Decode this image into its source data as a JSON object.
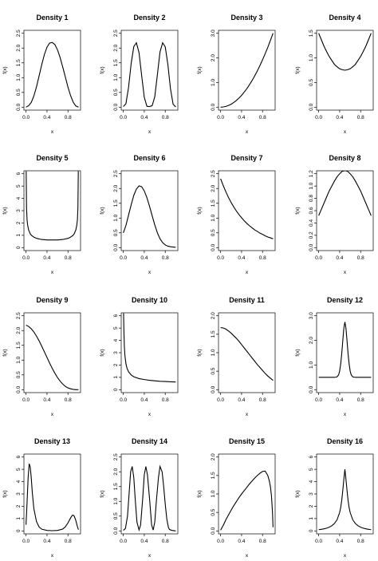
{
  "chart_data": [
    {
      "type": "line",
      "title": "Density 1",
      "xlabel": "x",
      "ylabel": "f(x)",
      "xlim": [
        0,
        1
      ],
      "ylim": [
        0,
        2.5
      ],
      "xticks": [
        "0.0",
        "0.4",
        "0.8"
      ],
      "yticks": [
        "0.0",
        "0.5",
        "1.0",
        "1.5",
        "2.0",
        "2.5"
      ],
      "x": [
        0,
        0.05,
        0.1,
        0.15,
        0.2,
        0.25,
        0.3,
        0.35,
        0.4,
        0.45,
        0.5,
        0.55,
        0.6,
        0.65,
        0.7,
        0.75,
        0.8,
        0.85,
        0.9,
        0.95,
        1
      ],
      "y": [
        0.0,
        0.05,
        0.16,
        0.38,
        0.69,
        1.06,
        1.44,
        1.78,
        2.03,
        2.17,
        2.19,
        2.12,
        1.94,
        1.68,
        1.36,
        1.02,
        0.68,
        0.39,
        0.17,
        0.04,
        0.0
      ]
    },
    {
      "type": "line",
      "title": "Density 2",
      "xlabel": "x",
      "ylabel": "f(x)",
      "xlim": [
        0,
        1
      ],
      "ylim": [
        0,
        2.5
      ],
      "xticks": [
        "0.0",
        "0.4",
        "0.8"
      ],
      "yticks": [
        "0.0",
        "0.5",
        "1.0",
        "1.5",
        "2.0",
        "2.5"
      ],
      "x": [
        0,
        0.05,
        0.1,
        0.15,
        0.2,
        0.25,
        0.3,
        0.35,
        0.4,
        0.45,
        0.5,
        0.55,
        0.6,
        0.65,
        0.7,
        0.75,
        0.8,
        0.85,
        0.9,
        0.95,
        1
      ],
      "y": [
        0.02,
        0.12,
        0.67,
        1.48,
        2.05,
        2.18,
        1.84,
        1.07,
        0.33,
        0.03,
        0.02,
        0.05,
        0.35,
        1.1,
        1.87,
        2.18,
        2.04,
        1.44,
        0.62,
        0.1,
        0.01
      ]
    },
    {
      "type": "line",
      "title": "Density 3",
      "xlabel": "x",
      "ylabel": "f(x)",
      "xlim": [
        0,
        1
      ],
      "ylim": [
        0,
        3
      ],
      "xticks": [
        "0.0",
        "0.4",
        "0.8"
      ],
      "yticks": [
        "0.0",
        "1.0",
        "2.0",
        "3.0"
      ],
      "x": [
        0,
        0.05,
        0.1,
        0.15,
        0.2,
        0.25,
        0.3,
        0.35,
        0.4,
        0.45,
        0.5,
        0.55,
        0.6,
        0.65,
        0.7,
        0.75,
        0.8,
        0.85,
        0.9,
        0.95,
        1
      ],
      "y": [
        0.0,
        0.01,
        0.03,
        0.07,
        0.12,
        0.19,
        0.27,
        0.37,
        0.48,
        0.61,
        0.75,
        0.91,
        1.08,
        1.27,
        1.47,
        1.69,
        1.92,
        2.17,
        2.43,
        2.71,
        3.0
      ]
    },
    {
      "type": "line",
      "title": "Density 4",
      "xlabel": "x",
      "ylabel": "f(x)",
      "xlim": [
        0,
        1
      ],
      "ylim": [
        0,
        1.5
      ],
      "xticks": [
        "0.0",
        "0.4",
        "0.8"
      ],
      "yticks": [
        "0.0",
        "0.5",
        "1.0",
        "1.5"
      ],
      "x": [
        0,
        0.05,
        0.1,
        0.15,
        0.2,
        0.25,
        0.3,
        0.35,
        0.4,
        0.45,
        0.5,
        0.55,
        0.6,
        0.65,
        0.7,
        0.75,
        0.8,
        0.85,
        0.9,
        0.95,
        1
      ],
      "y": [
        1.5,
        1.37,
        1.24,
        1.13,
        1.03,
        0.95,
        0.87,
        0.82,
        0.78,
        0.76,
        0.75,
        0.76,
        0.78,
        0.82,
        0.87,
        0.95,
        1.03,
        1.13,
        1.24,
        1.37,
        1.5
      ]
    },
    {
      "type": "line",
      "title": "Density 5",
      "xlabel": "x",
      "ylabel": "f(x)",
      "xlim": [
        0,
        1
      ],
      "ylim": [
        0,
        6
      ],
      "xticks": [
        "0.0",
        "0.4",
        "0.8"
      ],
      "yticks": [
        "0",
        "1",
        "2",
        "3",
        "4",
        "5",
        "6"
      ],
      "x": [
        0.003,
        0.01,
        0.02,
        0.03,
        0.05,
        0.08,
        0.1,
        0.15,
        0.2,
        0.3,
        0.4,
        0.5,
        0.6,
        0.7,
        0.8,
        0.85,
        0.9,
        0.92,
        0.95,
        0.97,
        0.98,
        0.99,
        0.997
      ],
      "y": [
        6.2,
        3.2,
        2.26,
        1.85,
        1.43,
        1.13,
        1.01,
        0.85,
        0.75,
        0.66,
        0.62,
        0.62,
        0.62,
        0.66,
        0.75,
        0.85,
        1.01,
        1.13,
        1.43,
        1.85,
        2.26,
        3.2,
        6.2
      ]
    },
    {
      "type": "line",
      "title": "Density 6",
      "xlabel": "x",
      "ylabel": "f(x)",
      "xlim": [
        0,
        1
      ],
      "ylim": [
        0,
        2.5
      ],
      "xticks": [
        "0.0",
        "0.4",
        "0.8"
      ],
      "yticks": [
        "0.0",
        "0.5",
        "1.0",
        "1.5",
        "2.0",
        "2.5"
      ],
      "x": [
        0,
        0.05,
        0.1,
        0.15,
        0.2,
        0.25,
        0.3,
        0.35,
        0.4,
        0.45,
        0.5,
        0.55,
        0.6,
        0.65,
        0.7,
        0.75,
        0.8,
        0.85,
        0.9,
        0.95,
        1
      ],
      "y": [
        0.5,
        0.75,
        1.1,
        1.45,
        1.77,
        1.98,
        2.09,
        2.06,
        1.92,
        1.69,
        1.4,
        1.08,
        0.77,
        0.5,
        0.3,
        0.17,
        0.09,
        0.05,
        0.03,
        0.02,
        0.01
      ]
    },
    {
      "type": "line",
      "title": "Density 7",
      "xlabel": "x",
      "ylabel": "f(x)",
      "xlim": [
        0,
        1
      ],
      "ylim": [
        0,
        2.5
      ],
      "xticks": [
        "0.0",
        "0.4",
        "0.8"
      ],
      "yticks": [
        "0.0",
        "0.5",
        "1.0",
        "1.5",
        "2.0",
        "2.5"
      ],
      "x": [
        0,
        0.05,
        0.1,
        0.15,
        0.2,
        0.25,
        0.3,
        0.35,
        0.4,
        0.45,
        0.5,
        0.55,
        0.6,
        0.65,
        0.7,
        0.75,
        0.8,
        0.85,
        0.9,
        0.95,
        1
      ],
      "y": [
        2.33,
        2.1,
        1.89,
        1.7,
        1.53,
        1.38,
        1.24,
        1.12,
        1.01,
        0.91,
        0.82,
        0.74,
        0.67,
        0.6,
        0.55,
        0.49,
        0.45,
        0.4,
        0.36,
        0.33,
        0.3
      ]
    },
    {
      "type": "line",
      "title": "Density 8",
      "xlabel": "x",
      "ylabel": "f(x)",
      "xlim": [
        0,
        1
      ],
      "ylim": [
        0,
        1.2
      ],
      "xticks": [
        "0.0",
        "0.4",
        "0.8"
      ],
      "yticks": [
        "0.0",
        "0.2",
        "0.4",
        "0.6",
        "0.8",
        "1.0",
        "1.2"
      ],
      "x": [
        0,
        0.05,
        0.1,
        0.15,
        0.2,
        0.25,
        0.3,
        0.35,
        0.4,
        0.45,
        0.5,
        0.55,
        0.6,
        0.65,
        0.7,
        0.75,
        0.8,
        0.85,
        0.9,
        0.95,
        1
      ],
      "y": [
        0.52,
        0.62,
        0.72,
        0.82,
        0.92,
        1.0,
        1.08,
        1.15,
        1.2,
        1.24,
        1.25,
        1.24,
        1.2,
        1.15,
        1.08,
        1.0,
        0.92,
        0.82,
        0.72,
        0.62,
        0.52
      ]
    },
    {
      "type": "line",
      "title": "Density 9",
      "xlabel": "x",
      "ylabel": "f(x)",
      "xlim": [
        0,
        1
      ],
      "ylim": [
        0,
        2.5
      ],
      "xticks": [
        "0.0",
        "0.4",
        "0.8"
      ],
      "yticks": [
        "0.0",
        "0.5",
        "1.0",
        "1.5",
        "2.0",
        "2.5"
      ],
      "x": [
        0,
        0.05,
        0.1,
        0.15,
        0.2,
        0.25,
        0.3,
        0.35,
        0.4,
        0.45,
        0.5,
        0.55,
        0.6,
        0.65,
        0.7,
        0.75,
        0.8,
        0.85,
        0.9,
        0.95,
        1
      ],
      "y": [
        2.18,
        2.14,
        2.06,
        1.95,
        1.81,
        1.65,
        1.47,
        1.28,
        1.09,
        0.9,
        0.72,
        0.56,
        0.41,
        0.29,
        0.19,
        0.11,
        0.06,
        0.03,
        0.01,
        0.0,
        0.0
      ]
    },
    {
      "type": "line",
      "title": "Density 10",
      "xlabel": "x",
      "ylabel": "f(x)",
      "xlim": [
        0,
        1
      ],
      "ylim": [
        0,
        6
      ],
      "xticks": [
        "0.0",
        "0.4",
        "0.8"
      ],
      "yticks": [
        "0",
        "1",
        "2",
        "3",
        "4",
        "5",
        "6"
      ],
      "x": [
        0.005,
        0.01,
        0.02,
        0.03,
        0.05,
        0.07,
        0.1,
        0.15,
        0.2,
        0.3,
        0.4,
        0.5,
        0.6,
        0.7,
        0.8,
        0.9,
        1
      ],
      "y": [
        6.2,
        5.0,
        3.5,
        2.8,
        2.1,
        1.75,
        1.45,
        1.2,
        1.05,
        0.9,
        0.82,
        0.76,
        0.72,
        0.68,
        0.66,
        0.64,
        0.62
      ]
    },
    {
      "type": "line",
      "title": "Density 11",
      "xlabel": "x",
      "ylabel": "f(x)",
      "xlim": [
        0,
        1
      ],
      "ylim": [
        0,
        2
      ],
      "xticks": [
        "0.0",
        "0.4",
        "0.8"
      ],
      "yticks": [
        "0.0",
        "0.5",
        "1.0",
        "1.5",
        "2.0"
      ],
      "x": [
        0,
        0.05,
        0.1,
        0.15,
        0.2,
        0.25,
        0.3,
        0.35,
        0.4,
        0.45,
        0.5,
        0.55,
        0.6,
        0.65,
        0.7,
        0.75,
        0.8,
        0.85,
        0.9,
        0.95,
        1
      ],
      "y": [
        1.68,
        1.67,
        1.64,
        1.59,
        1.53,
        1.46,
        1.39,
        1.31,
        1.22,
        1.13,
        1.04,
        0.95,
        0.86,
        0.77,
        0.68,
        0.6,
        0.52,
        0.44,
        0.37,
        0.31,
        0.25
      ]
    },
    {
      "type": "line",
      "title": "Density 12",
      "xlabel": "x",
      "ylabel": "f(x)",
      "xlim": [
        0,
        1
      ],
      "ylim": [
        0,
        3
      ],
      "xticks": [
        "0.0",
        "0.4",
        "0.8"
      ],
      "yticks": [
        "0.0",
        "1.0",
        "2.0",
        "3.0"
      ],
      "x": [
        0,
        0.1,
        0.2,
        0.3,
        0.35,
        0.38,
        0.4,
        0.42,
        0.44,
        0.46,
        0.48,
        0.5,
        0.52,
        0.54,
        0.56,
        0.58,
        0.6,
        0.62,
        0.65,
        0.7,
        0.8,
        0.9,
        1
      ],
      "y": [
        0.5,
        0.5,
        0.5,
        0.5,
        0.52,
        0.6,
        0.76,
        1.05,
        1.47,
        2.0,
        2.5,
        2.75,
        2.5,
        2.0,
        1.47,
        1.05,
        0.76,
        0.6,
        0.52,
        0.5,
        0.5,
        0.5,
        0.5
      ]
    },
    {
      "type": "line",
      "title": "Density 13",
      "xlabel": "x",
      "ylabel": "f(x)",
      "xlim": [
        0,
        1
      ],
      "ylim": [
        0,
        6
      ],
      "xticks": [
        "0.0",
        "0.4",
        "0.8"
      ],
      "yticks": [
        "0",
        "1",
        "2",
        "3",
        "4",
        "5",
        "6"
      ],
      "x": [
        0,
        0.02,
        0.04,
        0.06,
        0.08,
        0.1,
        0.12,
        0.15,
        0.2,
        0.25,
        0.3,
        0.4,
        0.5,
        0.6,
        0.7,
        0.75,
        0.8,
        0.85,
        0.88,
        0.9,
        0.92,
        0.95,
        0.98,
        1
      ],
      "y": [
        0.5,
        2.3,
        4.3,
        5.45,
        5.2,
        4.3,
        3.1,
        1.8,
        0.75,
        0.32,
        0.14,
        0.04,
        0.02,
        0.04,
        0.15,
        0.33,
        0.65,
        1.05,
        1.25,
        1.28,
        1.2,
        0.85,
        0.35,
        0.1
      ]
    },
    {
      "type": "line",
      "title": "Density 14",
      "xlabel": "x",
      "ylabel": "f(x)",
      "xlim": [
        0,
        1
      ],
      "ylim": [
        0,
        2.5
      ],
      "xticks": [
        "0.0",
        "0.4",
        "0.8"
      ],
      "yticks": [
        "0.0",
        "0.5",
        "1.0",
        "1.5",
        "2.0",
        "2.5"
      ],
      "x": [
        0,
        0.04,
        0.08,
        0.12,
        0.14,
        0.17,
        0.2,
        0.23,
        0.26,
        0.3,
        0.33,
        0.37,
        0.4,
        0.43,
        0.46,
        0.5,
        0.54,
        0.57,
        0.6,
        0.63,
        0.67,
        0.7,
        0.74,
        0.77,
        0.8,
        0.83,
        0.86,
        0.88,
        0.92,
        0.96,
        1
      ],
      "y": [
        0.02,
        0.08,
        0.5,
        1.5,
        2.0,
        2.18,
        1.8,
        1.0,
        0.3,
        0.03,
        0.2,
        1.1,
        1.9,
        2.18,
        1.9,
        1.1,
        0.2,
        0.03,
        0.3,
        1.0,
        1.8,
        2.18,
        2.0,
        1.5,
        0.9,
        0.4,
        0.12,
        0.05,
        0.02,
        0.01,
        0.0
      ]
    },
    {
      "type": "line",
      "title": "Density 15",
      "xlabel": "x",
      "ylabel": "f(x)",
      "xlim": [
        0,
        1
      ],
      "ylim": [
        0,
        2
      ],
      "xticks": [
        "0.0",
        "0.4",
        "0.8"
      ],
      "yticks": [
        "0.0",
        "0.5",
        "1.0",
        "1.5",
        "2.0"
      ],
      "x": [
        0,
        0.05,
        0.1,
        0.15,
        0.2,
        0.25,
        0.3,
        0.35,
        0.4,
        0.45,
        0.5,
        0.55,
        0.6,
        0.65,
        0.7,
        0.75,
        0.8,
        0.85,
        0.9,
        0.93,
        0.95,
        0.97,
        0.99,
        1
      ],
      "y": [
        0.02,
        0.15,
        0.3,
        0.43,
        0.56,
        0.68,
        0.79,
        0.9,
        1.0,
        1.09,
        1.18,
        1.27,
        1.35,
        1.43,
        1.5,
        1.56,
        1.61,
        1.62,
        1.5,
        1.35,
        1.2,
        0.95,
        0.5,
        0.1
      ]
    },
    {
      "type": "line",
      "title": "Density 16",
      "xlabel": "x",
      "ylabel": "f(x)",
      "xlim": [
        0,
        1
      ],
      "ylim": [
        0,
        6
      ],
      "xticks": [
        "0.0",
        "0.4",
        "0.8"
      ],
      "yticks": [
        "0",
        "1",
        "2",
        "3",
        "4",
        "5",
        "6"
      ],
      "x": [
        0,
        0.05,
        0.1,
        0.15,
        0.2,
        0.25,
        0.3,
        0.35,
        0.4,
        0.42,
        0.44,
        0.46,
        0.48,
        0.5,
        0.52,
        0.54,
        0.56,
        0.58,
        0.6,
        0.65,
        0.7,
        0.75,
        0.8,
        0.85,
        0.9,
        0.95,
        1
      ],
      "y": [
        0.1,
        0.13,
        0.17,
        0.22,
        0.3,
        0.42,
        0.6,
        0.9,
        1.5,
        1.9,
        2.5,
        3.3,
        4.2,
        5.0,
        4.2,
        3.3,
        2.5,
        1.9,
        1.5,
        0.9,
        0.6,
        0.42,
        0.3,
        0.22,
        0.17,
        0.13,
        0.1
      ]
    }
  ]
}
